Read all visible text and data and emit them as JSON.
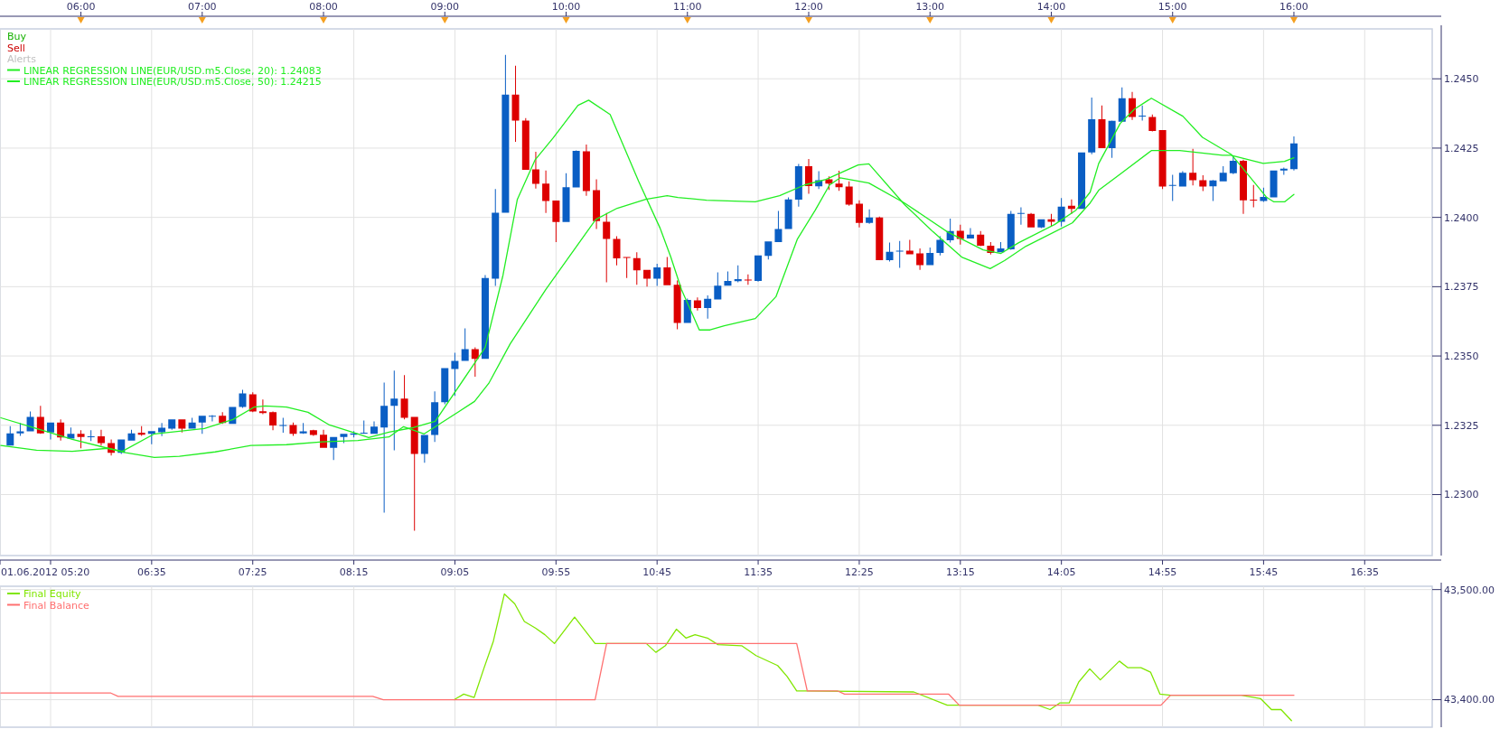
{
  "chart_data": [
    {
      "type": "candlestick",
      "xlim": [
        5.333,
        17.14
      ],
      "ylim": [
        1.2278,
        1.2468
      ],
      "xticks": [
        {
          "value": 5.333,
          "label": "01.06.2012 05:20"
        },
        {
          "value": 5.75,
          "label": null
        },
        {
          "value": 6.5833,
          "label": "06:35"
        },
        {
          "value": 7.4167,
          "label": "07:25"
        },
        {
          "value": 8.25,
          "label": "08:15"
        },
        {
          "value": 9.0833,
          "label": "09:05"
        },
        {
          "value": 9.9167,
          "label": "09:55"
        },
        {
          "value": 10.75,
          "label": "10:45"
        },
        {
          "value": 11.5833,
          "label": "11:35"
        },
        {
          "value": 12.4167,
          "label": "12:25"
        },
        {
          "value": 13.25,
          "label": "13:15"
        },
        {
          "value": 14.0833,
          "label": "14:05"
        },
        {
          "value": 14.9167,
          "label": "14:55"
        },
        {
          "value": 15.75,
          "label": "15:45"
        },
        {
          "value": 16.5833,
          "label": "16:35"
        }
      ],
      "x2lim": [
        5.333,
        17.14
      ],
      "x2ticks": [
        {
          "value": 6,
          "label": "06:00"
        },
        {
          "value": 7,
          "label": "07:00"
        },
        {
          "value": 8,
          "label": "08:00"
        },
        {
          "value": 9,
          "label": "09:00"
        },
        {
          "value": 10,
          "label": "10:00"
        },
        {
          "value": 11,
          "label": "11:00"
        },
        {
          "value": 12,
          "label": "12:00"
        },
        {
          "value": 13,
          "label": "13:00"
        },
        {
          "value": 14,
          "label": "14:00"
        },
        {
          "value": 15,
          "label": "15:00"
        },
        {
          "value": 16,
          "label": "16:00"
        }
      ],
      "yticks": [
        {
          "value": 1.23,
          "label": "1.2300"
        },
        {
          "value": 1.2325,
          "label": "1.2325"
        },
        {
          "value": 1.235,
          "label": "1.2350"
        },
        {
          "value": 1.2375,
          "label": "1.2375"
        },
        {
          "value": 1.24,
          "label": "1.2400"
        },
        {
          "value": 1.2425,
          "label": "1.2425"
        },
        {
          "value": 1.245,
          "label": "1.2450"
        }
      ],
      "grid": true,
      "legend": "top left",
      "annotations": [
        "Buy",
        "Sell",
        "Alerts"
      ],
      "series": [
        {
          "type": "candlestick",
          "x": [
            5.417,
            5.5,
            5.583,
            5.667,
            5.75,
            5.833,
            5.917,
            6,
            6.083,
            6.167,
            6.25,
            6.333,
            6.417,
            6.5,
            6.583,
            6.667,
            6.75,
            6.833,
            6.917,
            7,
            7.083,
            7.167,
            7.25,
            7.333,
            7.417,
            7.5,
            7.583,
            7.667,
            7.75,
            7.833,
            7.917,
            8,
            8.083,
            8.167,
            8.25,
            8.333,
            8.417,
            8.5,
            8.583,
            8.667,
            8.75,
            8.833,
            8.917,
            9,
            9.083,
            9.167,
            9.25,
            9.333,
            9.417,
            9.5,
            9.583,
            9.667,
            9.75,
            9.833,
            9.917,
            10,
            10.083,
            10.167,
            10.25,
            10.333,
            10.417,
            10.5,
            10.583,
            10.667,
            10.75,
            10.833,
            10.917,
            11,
            11.083,
            11.167,
            11.25,
            11.333,
            11.417,
            11.5,
            11.583,
            11.667,
            11.75,
            11.833,
            11.917,
            12,
            12.083,
            12.167,
            12.25,
            12.333,
            12.417,
            12.5,
            12.583,
            12.667,
            12.75,
            12.833,
            12.917,
            13,
            13.083,
            13.167,
            13.25,
            13.333,
            13.417,
            13.5,
            13.583,
            13.667,
            13.75,
            13.833,
            13.917,
            14,
            14.083,
            14.167,
            14.25,
            14.333,
            14.417,
            14.5,
            14.583,
            14.667,
            14.75,
            14.833,
            14.917,
            15,
            15.083,
            15.167,
            15.25,
            15.333,
            15.417,
            15.5,
            15.583,
            15.667,
            15.75,
            15.833,
            15.917,
            16
          ],
          "ohlc": [
            [
              1.23177,
              1.23247,
              1.23177,
              1.23221
            ],
            [
              1.23221,
              1.23258,
              1.23212,
              1.23228
            ],
            [
              1.23228,
              1.233,
              1.23228,
              1.2328
            ],
            [
              1.2328,
              1.2332,
              1.23219,
              1.23221
            ],
            [
              1.23224,
              1.2326,
              1.23199,
              1.2326
            ],
            [
              1.2326,
              1.23271,
              1.23195,
              1.23206
            ],
            [
              1.23202,
              1.23242,
              1.23202,
              1.23219
            ],
            [
              1.23219,
              1.23232,
              1.23167,
              1.23208
            ],
            [
              1.23207,
              1.23232,
              1.23193,
              1.2321
            ],
            [
              1.2321,
              1.23234,
              1.23177,
              1.23186
            ],
            [
              1.23186,
              1.23199,
              1.23141,
              1.23151
            ],
            [
              1.23151,
              1.23199,
              1.23147,
              1.23199
            ],
            [
              1.23195,
              1.23234,
              1.23195,
              1.23221
            ],
            [
              1.23223,
              1.23247,
              1.23212,
              1.23216
            ],
            [
              1.23219,
              1.23229,
              1.23182,
              1.23229
            ],
            [
              1.23225,
              1.23258,
              1.23211,
              1.23241
            ],
            [
              1.23238,
              1.23271,
              1.23234,
              1.23271
            ],
            [
              1.23271,
              1.23271,
              1.23224,
              1.23238
            ],
            [
              1.23238,
              1.23277,
              1.23238,
              1.2326
            ],
            [
              1.2326,
              1.23284,
              1.23219,
              1.23284
            ],
            [
              1.23281,
              1.23287,
              1.23264,
              1.23284
            ],
            [
              1.23284,
              1.23297,
              1.23255,
              1.23258
            ],
            [
              1.23255,
              1.23316,
              1.23255,
              1.23316
            ],
            [
              1.23316,
              1.23378,
              1.23313,
              1.23365
            ],
            [
              1.23362,
              1.23369,
              1.23297,
              1.233
            ],
            [
              1.23301,
              1.23343,
              1.2329,
              1.23294
            ],
            [
              1.23297,
              1.233,
              1.23232,
              1.23249
            ],
            [
              1.23249,
              1.23277,
              1.23223,
              1.23251
            ],
            [
              1.23251,
              1.2326,
              1.23212,
              1.23219
            ],
            [
              1.23221,
              1.23258,
              1.23219,
              1.23228
            ],
            [
              1.23232,
              1.23234,
              1.23212,
              1.23215
            ],
            [
              1.23216,
              1.23234,
              1.23169,
              1.23169
            ],
            [
              1.23169,
              1.23208,
              1.23125,
              1.23208
            ],
            [
              1.23208,
              1.23219,
              1.23186,
              1.23219
            ],
            [
              1.23216,
              1.23229,
              1.23206,
              1.23221
            ],
            [
              1.23221,
              1.23267,
              1.23219,
              1.23223
            ],
            [
              1.23219,
              1.23264,
              1.23219,
              1.23245
            ],
            [
              1.23242,
              1.23404,
              1.22935,
              1.2332
            ],
            [
              1.2332,
              1.23447,
              1.2316,
              1.23346
            ],
            [
              1.23346,
              1.23431,
              1.23271,
              1.23277
            ],
            [
              1.2328,
              1.2328,
              1.2287,
              1.23147
            ],
            [
              1.23147,
              1.23215,
              1.23115,
              1.23215
            ],
            [
              1.23215,
              1.23372,
              1.2319,
              1.23333
            ],
            [
              1.23333,
              1.23456,
              1.23326,
              1.23456
            ],
            [
              1.23453,
              1.23512,
              1.23356,
              1.23482
            ],
            [
              1.23482,
              1.236,
              1.23482,
              1.23525
            ],
            [
              1.23525,
              1.23531,
              1.23425,
              1.2349
            ],
            [
              1.2349,
              1.23792,
              1.2349,
              1.23781
            ],
            [
              1.23779,
              1.24102,
              1.23753,
              1.24017
            ],
            [
              1.24017,
              1.24586,
              1.24017,
              1.24443
            ],
            [
              1.24443,
              1.24547,
              1.24273,
              1.24349
            ],
            [
              1.24349,
              1.24358,
              1.24172,
              1.24172
            ],
            [
              1.24173,
              1.24237,
              1.24104,
              1.24121
            ],
            [
              1.24122,
              1.24169,
              1.24016,
              1.24059
            ],
            [
              1.24061,
              1.24061,
              1.23911,
              1.23983
            ],
            [
              1.23983,
              1.24159,
              1.23983,
              1.24109
            ],
            [
              1.24108,
              1.24242,
              1.24108,
              1.2424
            ],
            [
              1.24238,
              1.24263,
              1.24078,
              1.24095
            ],
            [
              1.24098,
              1.24137,
              1.23958,
              1.23987
            ],
            [
              1.23984,
              1.24016,
              1.23766,
              1.23922
            ],
            [
              1.23922,
              1.23932,
              1.23827,
              1.23852
            ],
            [
              1.23857,
              1.23857,
              1.23781,
              1.23854
            ],
            [
              1.23853,
              1.23874,
              1.23757,
              1.23809
            ],
            [
              1.23811,
              1.23811,
              1.2375,
              1.23779
            ],
            [
              1.23779,
              1.23833,
              1.23753,
              1.2382
            ],
            [
              1.2382,
              1.23857,
              1.23755,
              1.23755
            ],
            [
              1.23757,
              1.23772,
              1.23596,
              1.23619
            ],
            [
              1.23619,
              1.23707,
              1.23619,
              1.23702
            ],
            [
              1.23701,
              1.23711,
              1.23664,
              1.23673
            ],
            [
              1.23673,
              1.23719,
              1.23635,
              1.23706
            ],
            [
              1.23704,
              1.23802,
              1.23704,
              1.23754
            ],
            [
              1.23754,
              1.23805,
              1.23754,
              1.23771
            ],
            [
              1.2377,
              1.23827,
              1.23766,
              1.23777
            ],
            [
              1.23776,
              1.23794,
              1.23757,
              1.23772
            ],
            [
              1.23771,
              1.23863,
              1.23768,
              1.23863
            ],
            [
              1.23861,
              1.23913,
              1.23848,
              1.23913
            ],
            [
              1.23911,
              1.24023,
              1.23911,
              1.23958
            ],
            [
              1.23958,
              1.24072,
              1.23958,
              1.24065
            ],
            [
              1.24064,
              1.24193,
              1.24039,
              1.24185
            ],
            [
              1.24185,
              1.24211,
              1.24085,
              1.24113
            ],
            [
              1.24112,
              1.24167,
              1.24102,
              1.24134
            ],
            [
              1.24137,
              1.24148,
              1.24099,
              1.24122
            ],
            [
              1.24122,
              1.24168,
              1.24096,
              1.24109
            ],
            [
              1.24111,
              1.2413,
              1.24042,
              1.24046
            ],
            [
              1.24049,
              1.24062,
              1.23964,
              1.2398
            ],
            [
              1.2398,
              1.24029,
              1.23977,
              1.24
            ],
            [
              1.24,
              1.24003,
              1.23846,
              1.23846
            ],
            [
              1.23846,
              1.23909,
              1.23841,
              1.23876
            ],
            [
              1.23878,
              1.23915,
              1.23818,
              1.2388
            ],
            [
              1.2388,
              1.23919,
              1.23867,
              1.23867
            ],
            [
              1.2387,
              1.23888,
              1.23811,
              1.23828
            ],
            [
              1.23828,
              1.23891,
              1.23828,
              1.23872
            ],
            [
              1.23872,
              1.23932,
              1.23863,
              1.23919
            ],
            [
              1.23917,
              1.23996,
              1.23909,
              1.23951
            ],
            [
              1.23952,
              1.23974,
              1.23902,
              1.23922
            ],
            [
              1.23924,
              1.23961,
              1.23924,
              1.23938
            ],
            [
              1.23938,
              1.23951,
              1.23896,
              1.23898
            ],
            [
              1.23898,
              1.23911,
              1.23866,
              1.23872
            ],
            [
              1.23874,
              1.23911,
              1.23874,
              1.23888
            ],
            [
              1.23885,
              1.24023,
              1.23883,
              1.24013
            ],
            [
              1.24013,
              1.24036,
              1.23974,
              1.24016
            ],
            [
              1.24013,
              1.24016,
              1.23964,
              1.23964
            ],
            [
              1.23964,
              1.23993,
              1.23961,
              1.23993
            ],
            [
              1.23993,
              1.24013,
              1.23967,
              1.23984
            ],
            [
              1.23984,
              1.2407,
              1.23967,
              1.24039
            ],
            [
              1.24042,
              1.24065,
              1.24013,
              1.24031
            ],
            [
              1.24031,
              1.24234,
              1.24031,
              1.24234
            ],
            [
              1.24234,
              1.24432,
              1.24228,
              1.24354
            ],
            [
              1.24354,
              1.24404,
              1.2425,
              1.2425
            ],
            [
              1.2425,
              1.24349,
              1.24215,
              1.24348
            ],
            [
              1.24345,
              1.24469,
              1.24345,
              1.2443
            ],
            [
              1.2443,
              1.24453,
              1.24352,
              1.24362
            ],
            [
              1.24365,
              1.24404,
              1.24349,
              1.24367
            ],
            [
              1.24362,
              1.24371,
              1.2431,
              1.24312
            ],
            [
              1.24315,
              1.24315,
              1.24102,
              1.24111
            ],
            [
              1.24115,
              1.24154,
              1.24059,
              1.24117
            ],
            [
              1.24111,
              1.24167,
              1.24111,
              1.24161
            ],
            [
              1.24161,
              1.24247,
              1.24115,
              1.24134
            ],
            [
              1.24134,
              1.24152,
              1.24095,
              1.24111
            ],
            [
              1.24112,
              1.24135,
              1.24059,
              1.24133
            ],
            [
              1.2413,
              1.24185,
              1.2413,
              1.24161
            ],
            [
              1.24159,
              1.24224,
              1.24156,
              1.24204
            ],
            [
              1.24204,
              1.24208,
              1.24013,
              1.24062
            ],
            [
              1.24064,
              1.24117,
              1.24036,
              1.24061
            ],
            [
              1.24059,
              1.24107,
              1.24056,
              1.24074
            ],
            [
              1.24072,
              1.24169,
              1.24072,
              1.24169
            ],
            [
              1.24169,
              1.2418,
              1.24154,
              1.24176
            ],
            [
              1.24174,
              1.24292,
              1.24169,
              1.24267
            ]
          ],
          "colors": [
            "#0a5ec4",
            "#0a5ec4",
            "#0a5ec4",
            "#dd0000",
            "#0a5ec4",
            "#dd0000",
            "#0a5ec4",
            "#dd0000",
            "#0a5ec4",
            "#dd0000",
            "#dd0000",
            "#0a5ec4",
            "#0a5ec4",
            "#dd0000",
            "#0a5ec4",
            "#0a5ec4",
            "#0a5ec4",
            "#dd0000",
            "#0a5ec4",
            "#0a5ec4",
            "#0a5ec4",
            "#dd0000",
            "#0a5ec4",
            "#0a5ec4",
            "#dd0000",
            "#dd0000",
            "#dd0000",
            "#0a5ec4",
            "#dd0000",
            "#0a5ec4",
            "#dd0000",
            "#dd0000",
            "#0a5ec4",
            "#0a5ec4",
            "#0a5ec4",
            "#0a5ec4",
            "#0a5ec4",
            "#0a5ec4",
            "#0a5ec4",
            "#dd0000",
            "#dd0000",
            "#0a5ec4",
            "#0a5ec4",
            "#0a5ec4",
            "#0a5ec4",
            "#0a5ec4",
            "#dd0000",
            "#0a5ec4",
            "#0a5ec4",
            "#0a5ec4",
            "#dd0000",
            "#dd0000",
            "#dd0000",
            "#dd0000",
            "#dd0000",
            "#0a5ec4",
            "#0a5ec4",
            "#dd0000",
            "#dd0000",
            "#dd0000",
            "#dd0000",
            "#dd0000",
            "#dd0000",
            "#dd0000",
            "#0a5ec4",
            "#dd0000",
            "#dd0000",
            "#0a5ec4",
            "#dd0000",
            "#0a5ec4",
            "#0a5ec4",
            "#0a5ec4",
            "#0a5ec4",
            "#dd0000",
            "#0a5ec4",
            "#0a5ec4",
            "#0a5ec4",
            "#0a5ec4",
            "#0a5ec4",
            "#dd0000",
            "#0a5ec4",
            "#dd0000",
            "#dd0000",
            "#dd0000",
            "#dd0000",
            "#0a5ec4",
            "#dd0000",
            "#0a5ec4",
            "#0a5ec4",
            "#dd0000",
            "#dd0000",
            "#0a5ec4",
            "#0a5ec4",
            "#0a5ec4",
            "#dd0000",
            "#0a5ec4",
            "#dd0000",
            "#dd0000",
            "#0a5ec4",
            "#0a5ec4",
            "#0a5ec4",
            "#dd0000",
            "#0a5ec4",
            "#dd0000",
            "#0a5ec4",
            "#dd0000",
            "#0a5ec4",
            "#0a5ec4",
            "#dd0000",
            "#0a5ec4",
            "#0a5ec4",
            "#dd0000",
            "#0a5ec4",
            "#dd0000",
            "#dd0000",
            "#0a5ec4",
            "#0a5ec4",
            "#dd0000",
            "#dd0000",
            "#0a5ec4",
            "#0a5ec4",
            "#0a5ec4",
            "#dd0000",
            "#dd0000",
            "#0a5ec4",
            "#0a5ec4",
            "#0a5ec4",
            "#0a5ec4"
          ]
        },
        {
          "type": "line",
          "name": "LINEAR REGRESSION LINE(EUR/USD.m5.Close, 20): 1.24083",
          "color": "#22ee22",
          "x": [
            5.34,
            5.634,
            5.929,
            6.223,
            6.341,
            6.606,
            7.018,
            7.254,
            7.43,
            7.519,
            7.695,
            7.872,
            8.049,
            8.284,
            8.372,
            8.54,
            8.744,
            8.921,
            9.333,
            9.48,
            9.598,
            9.745,
            9.892,
            10.098,
            10.186,
            10.363,
            10.598,
            10.775,
            10.863,
            10.951,
            11.098,
            11.187,
            11.304,
            11.56,
            11.73,
            11.907,
            12.054,
            12.172,
            12.26,
            12.496,
            12.79,
            13.143,
            13.438,
            13.585,
            13.732,
            14.026,
            14.203,
            14.32,
            14.391,
            14.568,
            14.686,
            14.825,
            15.084,
            15.246,
            15.481,
            15.57,
            15.776,
            15.835,
            15.923,
            16
          ],
          "values": [
            1.23277,
            1.23238,
            1.23199,
            1.23167,
            1.23156,
            1.23219,
            1.23238,
            1.23271,
            1.23316,
            1.2332,
            1.23316,
            1.23297,
            1.23251,
            1.23219,
            1.23206,
            1.23225,
            1.23242,
            1.23264,
            1.23531,
            1.23792,
            1.24065,
            1.24208,
            1.24286,
            1.24404,
            1.24423,
            1.24371,
            1.2413,
            1.23961,
            1.23857,
            1.2374,
            1.23594,
            1.23594,
            1.23609,
            1.23635,
            1.23714,
            1.23922,
            1.24026,
            1.24117,
            1.24143,
            1.24124,
            1.24052,
            1.23948,
            1.23883,
            1.2387,
            1.23909,
            1.23974,
            1.24026,
            1.24091,
            1.24195,
            1.24339,
            1.24391,
            1.2443,
            1.24365,
            1.24289,
            1.24228,
            1.24182,
            1.24072,
            1.24056,
            1.24056,
            1.24083
          ]
        },
        {
          "type": "line",
          "name": "LINEAR REGRESSION LINE(EUR/USD.m5.Close, 50): 1.24215",
          "color": "#22ee22",
          "x": [
            5.34,
            5.634,
            5.929,
            6.223,
            6.37,
            6.606,
            6.812,
            7.107,
            7.401,
            7.695,
            7.99,
            8.284,
            8.54,
            8.66,
            8.83,
            9.245,
            9.362,
            9.539,
            9.833,
            10.245,
            10.421,
            10.657,
            10.833,
            10.922,
            11.157,
            11.56,
            11.76,
            11.966,
            12.142,
            12.407,
            12.496,
            12.79,
            13.025,
            13.261,
            13.496,
            13.614,
            13.791,
            14.173,
            14.32,
            14.391,
            14.568,
            14.825,
            15.058,
            15.411,
            15.481,
            15.747,
            15.923,
            16
          ],
          "values": [
            1.23177,
            1.2316,
            1.23156,
            1.23167,
            1.23151,
            1.23134,
            1.23138,
            1.23154,
            1.23177,
            1.2318,
            1.2319,
            1.23195,
            1.23208,
            1.23245,
            1.23219,
            1.23336,
            1.23401,
            1.23544,
            1.2374,
            1.23993,
            1.24033,
            1.24065,
            1.24078,
            1.24072,
            1.24062,
            1.24056,
            1.24078,
            1.24117,
            1.24137,
            1.24189,
            1.24193,
            1.24046,
            1.23948,
            1.23857,
            1.23815,
            1.23844,
            1.23896,
            1.2398,
            1.24052,
            1.24098,
            1.24156,
            1.24241,
            1.24241,
            1.24224,
            1.24224,
            1.24195,
            1.24202,
            1.24215
          ]
        }
      ]
    },
    {
      "type": "line",
      "xlim": [
        5.333,
        17.14
      ],
      "ylim": [
        43375,
        43503
      ],
      "xticks": [
        {
          "value": 5.333,
          "label": null
        },
        {
          "value": 5.75,
          "label": null
        },
        {
          "value": 6.5833,
          "label": null
        },
        {
          "value": 7.4167,
          "label": null
        },
        {
          "value": 8.25,
          "label": null
        },
        {
          "value": 9.0833,
          "label": null
        },
        {
          "value": 9.9167,
          "label": null
        },
        {
          "value": 10.75,
          "label": null
        },
        {
          "value": 11.5833,
          "label": null
        },
        {
          "value": 12.4167,
          "label": null
        },
        {
          "value": 13.25,
          "label": null
        },
        {
          "value": 14.0833,
          "label": null
        },
        {
          "value": 14.9167,
          "label": null
        },
        {
          "value": 15.75,
          "label": null
        },
        {
          "value": 16.5833,
          "label": null
        }
      ],
      "yticks": [
        {
          "value": 43400,
          "label": "43,400.00"
        },
        {
          "value": 43500,
          "label": "43,500.00"
        }
      ],
      "tick_labels": "y",
      "grid": true,
      "legend": "top left",
      "series": [
        {
          "name": "Final Equity",
          "color": "#80e600",
          "x": [
            9.077,
            9.156,
            9.242,
            9.321,
            9.4,
            9.491,
            9.577,
            9.656,
            9.747,
            9.825,
            9.904,
            10.07,
            10.239,
            10.661,
            10.74,
            10.818,
            10.909,
            10.988,
            11.063,
            11.165,
            11.252,
            11.447,
            11.566,
            11.744,
            11.822,
            11.901,
            11.988,
            12.866,
            13.142,
            13.241,
            13.891,
            13.99,
            14.069,
            14.147,
            14.226,
            14.317,
            14.404,
            14.561,
            14.632,
            14.739,
            14.818,
            14.896,
            14.983,
            15.566,
            15.725,
            15.815,
            15.894,
            15.98
          ],
          "values": [
            43400,
            43405,
            43402,
            43428,
            43453,
            43496,
            43487,
            43471,
            43465,
            43459,
            43451,
            43475,
            43451,
            43451,
            43443,
            43449,
            43464,
            43456,
            43459,
            43456,
            43450,
            43449,
            43440,
            43431,
            43421,
            43408,
            43408,
            43407,
            43395,
            43395,
            43395,
            43391,
            43397,
            43397,
            43416,
            43428,
            43418,
            43435,
            43429,
            43429,
            43425,
            43405,
            43404,
            43404,
            43401,
            43391,
            43391,
            43381
          ]
        },
        {
          "name": "Final Balance",
          "color": "#ff7070",
          "x": [
            5.34,
            6.247,
            6.306,
            8.406,
            8.493,
            10.239,
            10.334,
            11.901,
            11.988,
            12.236,
            12.295,
            13.154,
            13.241,
            14.904,
            14.983,
            16
          ],
          "values": [
            43406,
            43406,
            43403,
            43403,
            43400,
            43400,
            43451,
            43451,
            43408,
            43408,
            43405,
            43405,
            43395,
            43395,
            43404,
            43404
          ]
        }
      ]
    }
  ]
}
